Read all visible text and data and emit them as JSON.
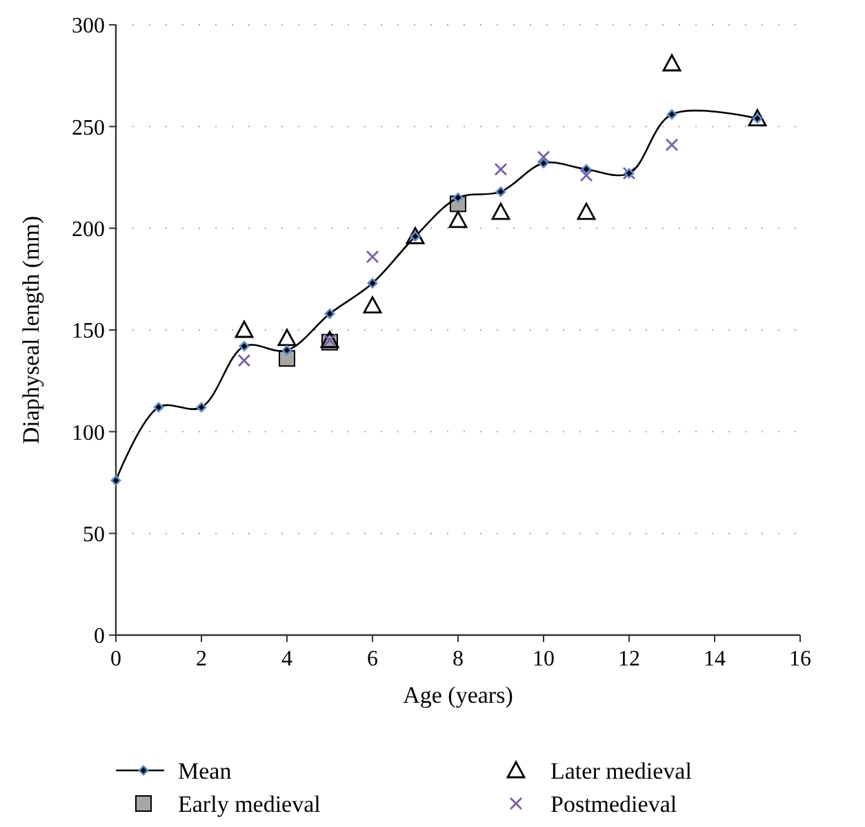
{
  "chart_data": {
    "type": "line",
    "xlabel": "Age (years)",
    "ylabel": "Diaphyseal length (mm)",
    "xlim": [
      0,
      16
    ],
    "xticks": [
      0,
      2,
      4,
      6,
      8,
      10,
      12,
      14,
      16
    ],
    "ylim": [
      0,
      300
    ],
    "yticks": [
      0,
      50,
      100,
      150,
      200,
      250,
      300
    ],
    "grid": "y",
    "legend": "bottom",
    "series": [
      {
        "name": "Mean",
        "type": "line",
        "marker": "diamond",
        "color": "#000000",
        "x": [
          0,
          1,
          2,
          3,
          4,
          5,
          6,
          7,
          8,
          9,
          10,
          11,
          12,
          13,
          15
        ],
        "values": [
          76,
          112,
          112,
          142,
          140,
          158,
          173,
          196,
          215,
          218,
          232,
          229,
          227,
          256,
          254
        ]
      },
      {
        "name": "Early medieval",
        "type": "scatter",
        "marker": "square",
        "color": "#a6a6a6",
        "x": [
          4,
          5,
          8
        ],
        "values": [
          136,
          144,
          212
        ]
      },
      {
        "name": "Later medieval",
        "type": "scatter",
        "marker": "triangle",
        "color": "#000000",
        "x": [
          3,
          4,
          5,
          6,
          7,
          8,
          9,
          11,
          13,
          15
        ],
        "values": [
          150,
          146,
          145,
          162,
          196,
          204,
          208,
          208,
          281,
          254
        ]
      },
      {
        "name": "Postmedieval",
        "type": "scatter",
        "marker": "cross",
        "color": "#7a5ea8",
        "x": [
          3,
          5,
          6,
          9,
          10,
          11,
          12,
          13
        ],
        "values": [
          135,
          145,
          186,
          229,
          235,
          226,
          227,
          241
        ]
      }
    ]
  }
}
